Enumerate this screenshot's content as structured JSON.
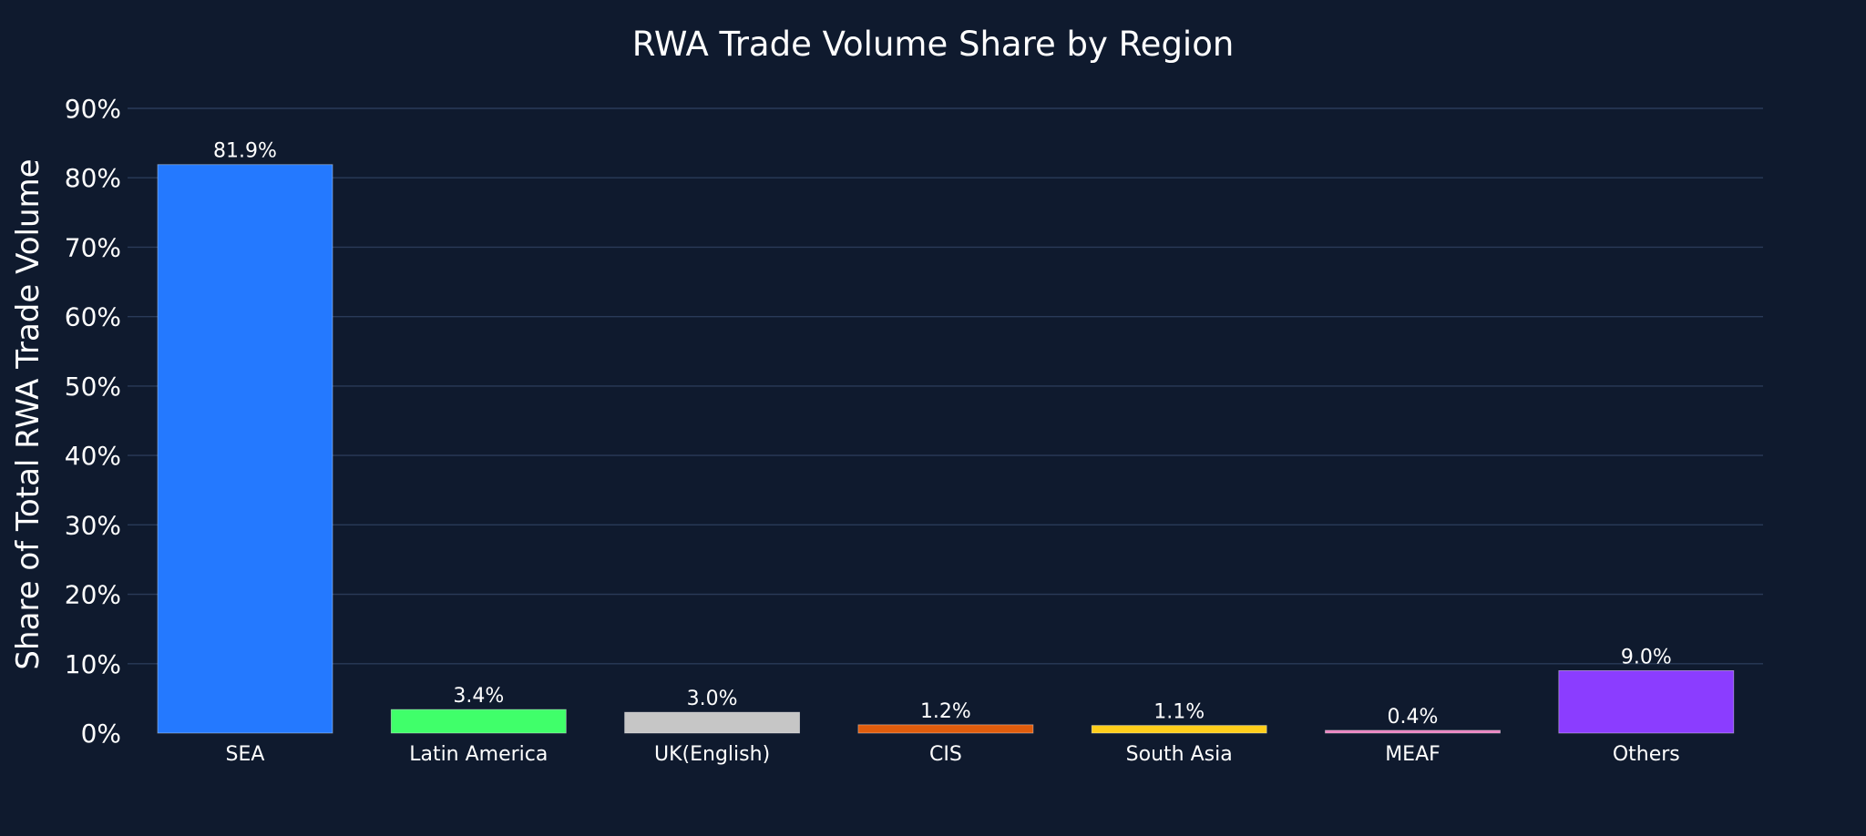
{
  "chart_data": {
    "type": "bar",
    "title": "RWA Trade Volume Share by Region",
    "xlabel": "",
    "ylabel": "Share of Total RWA Trade Volume",
    "categories": [
      "SEA",
      "Latin America",
      "UK(English)",
      "CIS",
      "South Asia",
      "MEAF",
      "Others"
    ],
    "values": [
      81.9,
      3.4,
      3.0,
      1.2,
      1.1,
      0.4,
      9.0
    ],
    "data_labels": [
      "81.9%",
      "3.4%",
      "3.0%",
      "1.2%",
      "1.1%",
      "0.4%",
      "9.0%"
    ],
    "colors": [
      "#2479ff",
      "#40ff6a",
      "#c6c6c6",
      "#e05c0c",
      "#ffce1a",
      "#e97fbe",
      "#8b3dff"
    ],
    "ylim": [
      0,
      90
    ],
    "yticks": [
      0,
      10,
      20,
      30,
      40,
      50,
      60,
      70,
      80,
      90
    ],
    "ytick_labels": [
      "0%",
      "10%",
      "20%",
      "30%",
      "40%",
      "50%",
      "60%",
      "70%",
      "80%",
      "90%"
    ],
    "grid": true,
    "legend": "none",
    "background": "#0f1a2e",
    "grid_color": "#2a3a58"
  }
}
